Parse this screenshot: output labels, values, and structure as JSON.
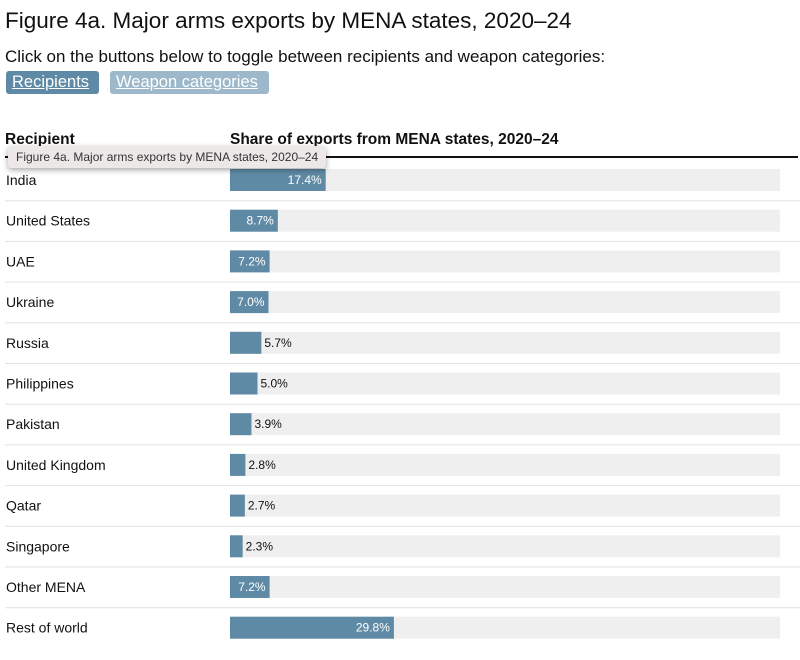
{
  "title": "Figure 4a. Major arms exports by MENA states, 2020–24",
  "subtitle": "Click on the buttons below to toggle between recipients and weapon categories:",
  "buttons": {
    "recipients": "Recipients",
    "weapon_categories": "Weapon categories"
  },
  "header": {
    "col_recipient": "Recipient",
    "col_share": "Share of exports from MENA states, 2020–24"
  },
  "tooltip": "Figure 4a. Major arms exports by MENA states, 2020–24",
  "colors": {
    "bar": "#5f8aa5",
    "track": "#efefef",
    "row_divider": "#e2e2e2",
    "button_active": "#5f8aa5",
    "button_inactive": "#9cb8ca"
  },
  "chart_data": {
    "type": "bar",
    "orientation": "horizontal",
    "categories": [
      "India",
      "United States",
      "UAE",
      "Ukraine",
      "Russia",
      "Philippines",
      "Pakistan",
      "United Kingdom",
      "Qatar",
      "Singapore",
      "Other MENA",
      "Rest of world"
    ],
    "values": [
      17.4,
      8.7,
      7.2,
      7.0,
      5.7,
      5.0,
      3.9,
      2.8,
      2.7,
      2.3,
      7.2,
      29.8
    ],
    "labels": [
      "17.4%",
      "8.7%",
      "7.2%",
      "7.0%",
      "5.7%",
      "5.0%",
      "3.9%",
      "2.8%",
      "2.7%",
      "2.3%",
      "7.2%",
      "29.8%"
    ],
    "unit": "%",
    "xlim": [
      0,
      100
    ],
    "xlabel": "Share of exports from MENA states, 2020–24",
    "ylabel": "Recipient",
    "grid": false,
    "legend": "none"
  }
}
